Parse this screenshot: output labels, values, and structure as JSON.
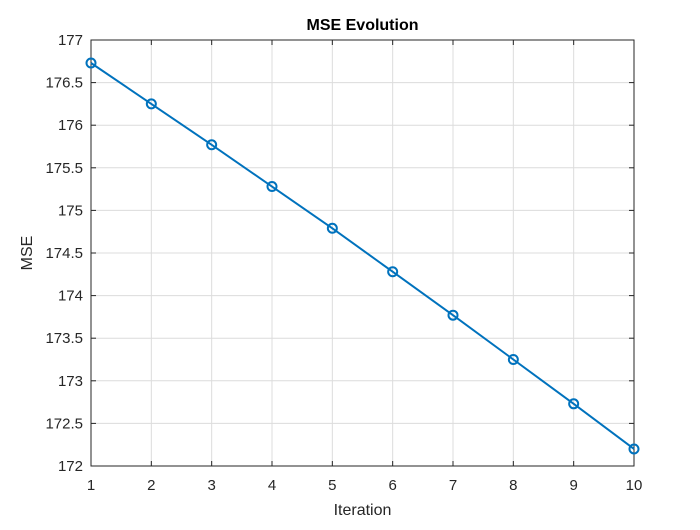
{
  "chart_data": {
    "type": "line",
    "title": "MSE Evolution",
    "xlabel": "Iteration",
    "ylabel": "MSE",
    "xlim": [
      1,
      10
    ],
    "ylim": [
      172,
      177
    ],
    "xticks": [
      "1",
      "2",
      "3",
      "4",
      "5",
      "6",
      "7",
      "8",
      "9",
      "10"
    ],
    "yticks": [
      "172",
      "172.5",
      "173",
      "173.5",
      "174",
      "174.5",
      "175",
      "175.5",
      "176",
      "176.5",
      "177"
    ],
    "grid": true,
    "series": [
      {
        "x": [
          1,
          2,
          3,
          4,
          5,
          6,
          7,
          8,
          9,
          10
        ],
        "values": [
          176.73,
          176.25,
          175.77,
          175.28,
          174.79,
          174.28,
          173.77,
          173.25,
          172.73,
          172.2
        ],
        "color": "#0072BD",
        "marker": "circle"
      }
    ]
  }
}
